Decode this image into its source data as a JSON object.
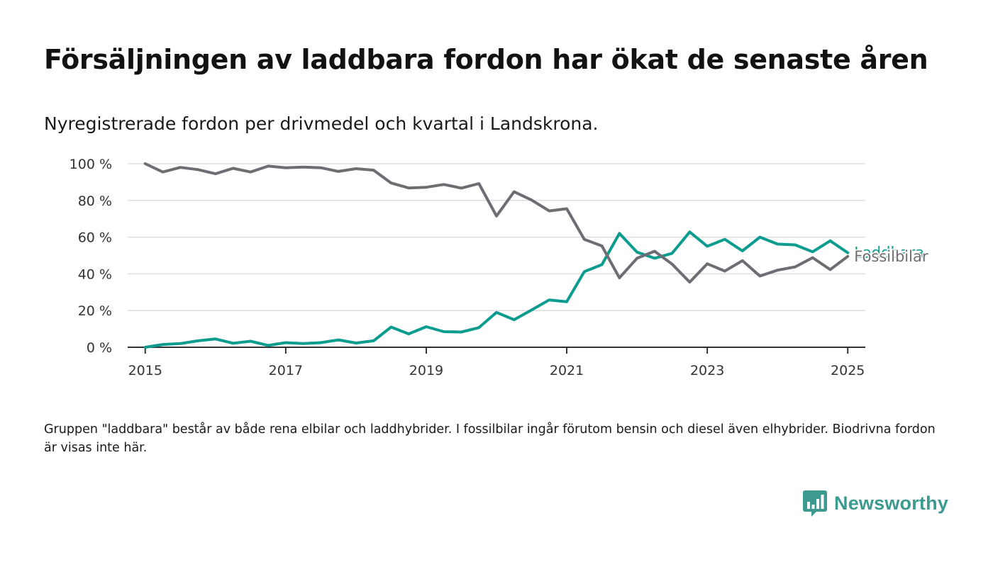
{
  "title": "Försäljningen av laddbara fordon har ökat de senaste åren",
  "subtitle": "Nyregistrerade fordon per drivmedel och kvartal i Landskrona.",
  "footnote": "Gruppen \"laddbara\" består av både rena elbilar och laddhybrider. I fossilbilar ingår förutom bensin och diesel även elhybrider. Biodrivna fordon är visas inte här.",
  "brand": {
    "name": "Newsworthy",
    "icon": "bar-chart-speech-bubble-icon",
    "color": "#3c9a91"
  },
  "chart_data": {
    "type": "line",
    "x_start": "2015-01-01",
    "x_interval": "quarter",
    "xlim": [
      2014.75,
      2025.25
    ],
    "ylim": [
      0,
      100
    ],
    "x_ticks": [
      2015,
      2017,
      2019,
      2021,
      2023,
      2025
    ],
    "x_tick_labels": [
      "2015",
      "2017",
      "2019",
      "2021",
      "2023",
      "2025"
    ],
    "y_ticks": [
      0,
      20,
      40,
      60,
      80,
      100
    ],
    "y_tick_labels": [
      "0 %",
      "20 %",
      "40 %",
      "60 %",
      "80 %",
      "100 %"
    ],
    "grid": "horizontal",
    "legend": "direct labels at line ends (right)",
    "series": [
      {
        "name": "Fossilbilar",
        "color": "#6e6d73",
        "values": [
          100,
          95.5,
          98,
          96.8,
          94.5,
          97.5,
          95.5,
          98.7,
          97.8,
          98.2,
          97.8,
          95.8,
          97.3,
          96.5,
          89.5,
          86.8,
          87.2,
          88.7,
          86.7,
          89.2,
          71.5,
          84.7,
          80.2,
          74.3,
          75.5,
          58.8,
          55.2,
          37.8,
          48.5,
          52.3,
          45.3,
          35.5,
          45.5,
          41.5,
          47.2,
          38.8,
          42,
          43.8,
          48.8,
          42.3,
          49.5
        ]
      },
      {
        "name": "Laddbara",
        "color": "#0a9c8e",
        "values": [
          0,
          1.5,
          2,
          3.5,
          4.5,
          2.2,
          3.3,
          1,
          2.5,
          2,
          2.5,
          4,
          2.3,
          3.5,
          11,
          7.3,
          11.2,
          8.5,
          8.3,
          10.7,
          19,
          15,
          20.3,
          25.8,
          24.8,
          41.2,
          45,
          62,
          51.8,
          48.5,
          51.2,
          62.8,
          55,
          58.8,
          52.5,
          60,
          56.2,
          55.8,
          52,
          58,
          51.5
        ]
      }
    ]
  }
}
